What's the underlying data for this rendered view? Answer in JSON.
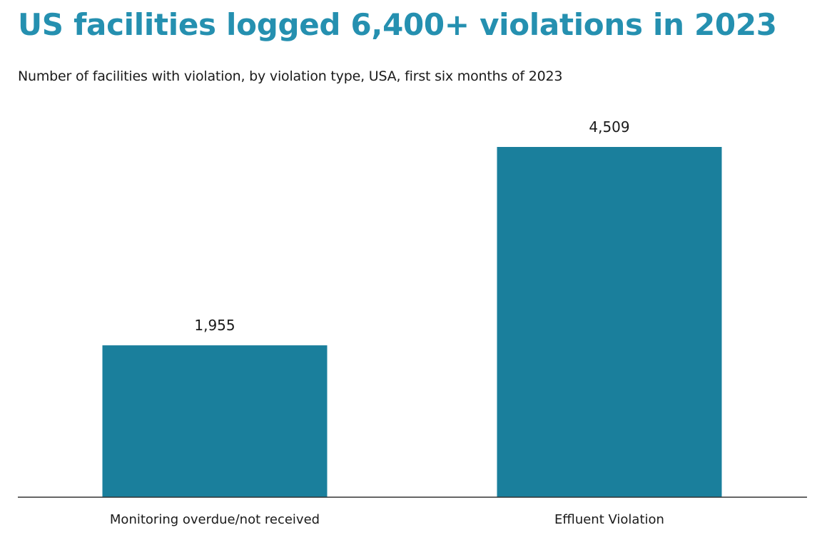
{
  "chart_data": {
    "type": "bar",
    "title": "US facilities logged 6,400+ violations in 2023",
    "subtitle": "Number of facilities with violation, by violation type, USA, first six months of 2023",
    "categories": [
      "Monitoring overdue/not received",
      "Effluent Violation"
    ],
    "values": [
      1955,
      4509
    ],
    "value_labels": [
      "1,955",
      "4,509"
    ],
    "xlabel": "",
    "ylabel": "",
    "ylim": [
      0,
      4509
    ],
    "grid": false,
    "legend": "none",
    "colors": {
      "bar": "#1a7f9c",
      "title": "#2590b0",
      "axis": "#333333"
    }
  }
}
